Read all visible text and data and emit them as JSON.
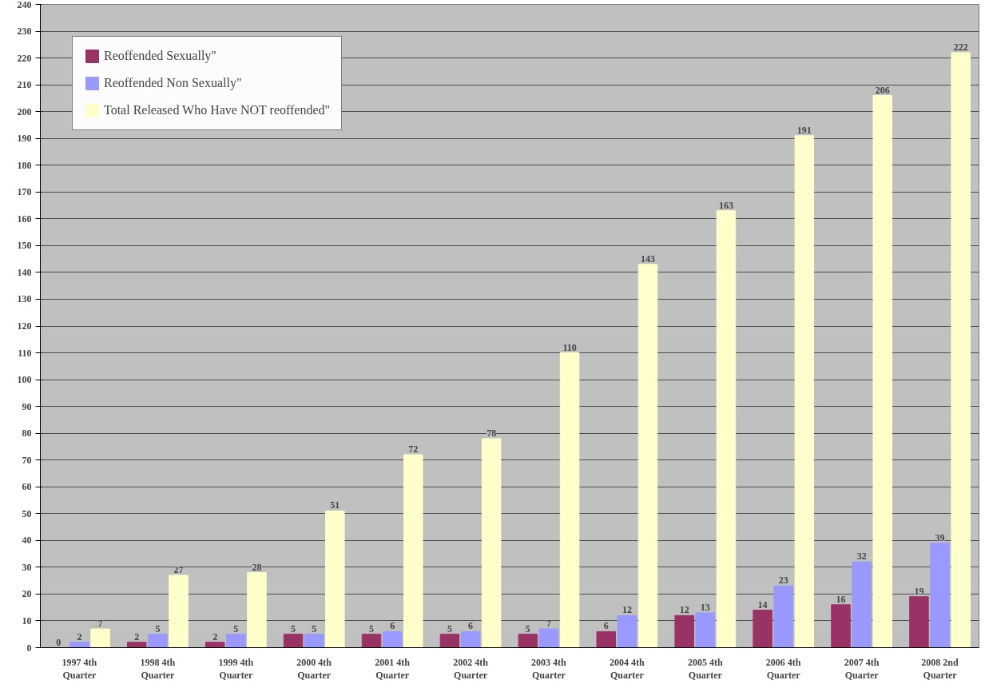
{
  "chart_data": {
    "type": "bar",
    "categories": [
      "1997 4th Quarter",
      "1998 4th Quarter",
      "1999 4th Quarter",
      "2000 4th Quarter",
      "2001 4th Quarter",
      "2002 4th Quarter",
      "2003 4th Quarter",
      "2004 4th Quarter",
      "2005 4th Quarter",
      "2006 4th Quarter",
      "2007 4th Quarter",
      "2008 2nd Quarter"
    ],
    "series": [
      {
        "name": "Reoffended Sexually\"",
        "color": "#993366",
        "values": [
          0,
          2,
          2,
          5,
          5,
          5,
          5,
          6,
          12,
          14,
          16,
          19
        ]
      },
      {
        "name": "Reoffended Non Sexually\"",
        "color": "#9999ff",
        "values": [
          2,
          5,
          5,
          5,
          6,
          6,
          7,
          12,
          13,
          23,
          32,
          39
        ]
      },
      {
        "name": "Total Released Who Have NOT reoffended\"",
        "color": "#ffffcc",
        "values": [
          7,
          27,
          28,
          51,
          72,
          78,
          110,
          143,
          163,
          191,
          206,
          222
        ]
      }
    ],
    "ylim": [
      0,
      240
    ],
    "yticks": [
      0,
      10,
      20,
      30,
      40,
      50,
      60,
      70,
      80,
      90,
      100,
      110,
      120,
      130,
      140,
      150,
      160,
      170,
      180,
      190,
      200,
      210,
      220,
      230,
      240
    ],
    "grid": "y",
    "legend": "top left",
    "data_labels": true
  }
}
